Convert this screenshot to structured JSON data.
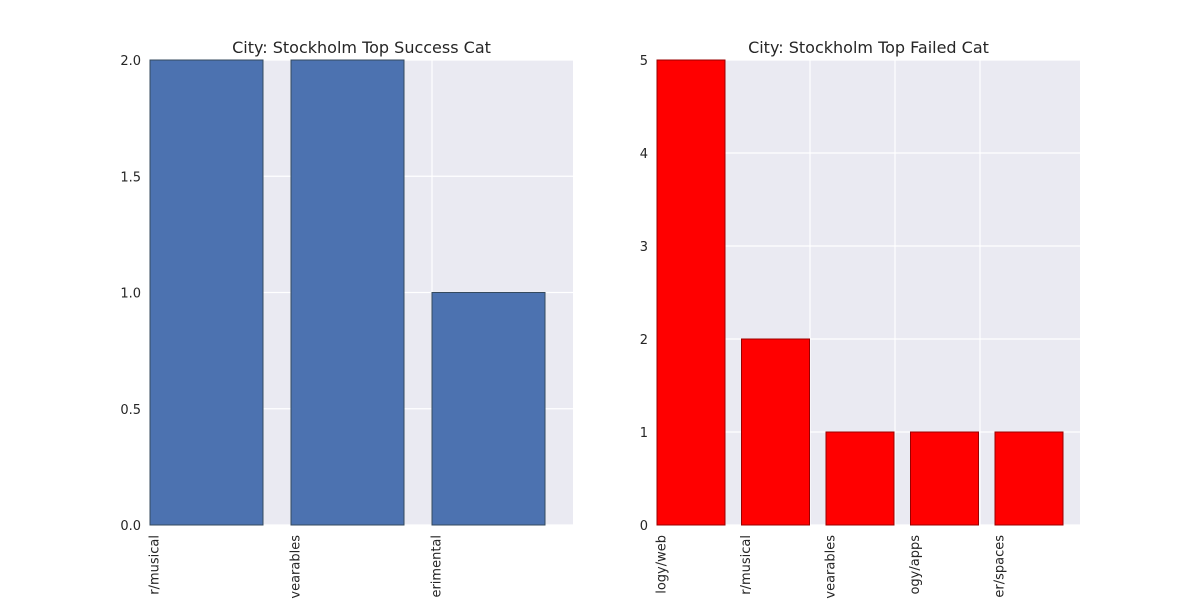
{
  "chart_data": [
    {
      "type": "bar",
      "title": "City: Stockholm Top Success Cat",
      "categories": [
        "theater/musical",
        "technology/wearables",
        "music/experimental"
      ],
      "values": [
        2,
        2,
        1
      ],
      "ylim": [
        0,
        2
      ],
      "yticks": [
        "0.0",
        "0.5",
        "1.0",
        "1.5",
        "2.0"
      ],
      "ytick_values": [
        0,
        0.5,
        1.0,
        1.5,
        2.0
      ],
      "xlabels_visible": [
        "r/musical",
        "vearables",
        "erimental"
      ],
      "color": "#4c72b0",
      "edge_color": "#34495e",
      "xlabel": "",
      "ylabel": "",
      "grid": true
    },
    {
      "type": "bar",
      "title": "City: Stockholm Top Failed Cat",
      "categories": [
        "technology/web",
        "theater/musical",
        "technology/wearables",
        "technology/apps",
        "theater/spaces"
      ],
      "values": [
        5,
        2,
        1,
        1,
        1
      ],
      "ylim": [
        0,
        5
      ],
      "yticks": [
        "0",
        "1",
        "2",
        "3",
        "4",
        "5"
      ],
      "ytick_values": [
        0,
        1,
        2,
        3,
        4,
        5
      ],
      "xlabels_visible": [
        "logy/web",
        "r/musical",
        "vearables",
        "ogy/apps",
        "er/spaces"
      ],
      "color": "#ff0000",
      "edge_color": "#990000",
      "xlabel": "",
      "ylabel": "",
      "grid": true
    }
  ]
}
